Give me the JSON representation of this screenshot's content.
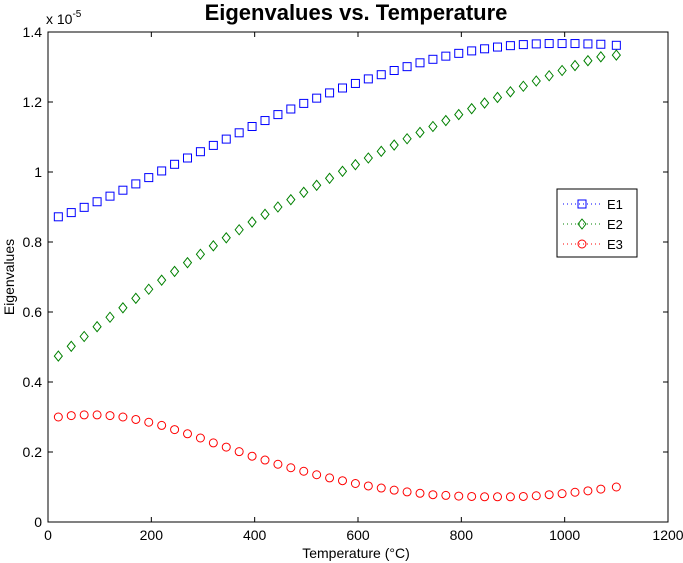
{
  "chart_data": {
    "type": "scatter",
    "title": "Eigenvalues vs. Temperature",
    "xlabel": "Temperature (°C)",
    "ylabel": "Eigenvalues",
    "exponent_label": "x 10",
    "exponent_power": "-5",
    "xlim": [
      0,
      1200
    ],
    "ylim": [
      0,
      1.4
    ],
    "xticks": [
      0,
      200,
      400,
      600,
      800,
      1000,
      1200
    ],
    "yticks": [
      0,
      0.2,
      0.4,
      0.6,
      0.8,
      1,
      1.2,
      1.4
    ],
    "xtick_labels": [
      "0",
      "200",
      "400",
      "600",
      "800",
      "1000",
      "1200"
    ],
    "ytick_labels": [
      "0",
      "0.2",
      "0.4",
      "0.6",
      "0.8",
      "1",
      "1.2",
      "1.4"
    ],
    "grid": false,
    "legend_position": "right",
    "x": [
      20,
      45,
      70,
      95,
      120,
      145,
      170,
      195,
      220,
      245,
      270,
      295,
      320,
      345,
      370,
      395,
      420,
      445,
      470,
      495,
      520,
      545,
      570,
      595,
      620,
      645,
      670,
      695,
      720,
      745,
      770,
      795,
      820,
      845,
      870,
      895,
      920,
      945,
      970,
      995,
      1020,
      1045,
      1070,
      1100
    ],
    "series": [
      {
        "name": "E1",
        "color": "#0000ff",
        "marker": "square",
        "values": [
          0.872,
          0.884,
          0.899,
          0.915,
          0.931,
          0.948,
          0.966,
          0.984,
          1.003,
          1.022,
          1.04,
          1.058,
          1.076,
          1.094,
          1.112,
          1.13,
          1.147,
          1.164,
          1.18,
          1.196,
          1.211,
          1.226,
          1.24,
          1.253,
          1.266,
          1.278,
          1.29,
          1.301,
          1.312,
          1.322,
          1.331,
          1.339,
          1.346,
          1.352,
          1.357,
          1.361,
          1.364,
          1.366,
          1.367,
          1.367,
          1.367,
          1.366,
          1.365,
          1.362
        ]
      },
      {
        "name": "E2",
        "color": "#008000",
        "marker": "diamond",
        "values": [
          0.474,
          0.502,
          0.53,
          0.558,
          0.585,
          0.612,
          0.639,
          0.665,
          0.691,
          0.716,
          0.741,
          0.765,
          0.789,
          0.812,
          0.835,
          0.857,
          0.879,
          0.9,
          0.921,
          0.942,
          0.962,
          0.982,
          1.002,
          1.021,
          1.04,
          1.059,
          1.077,
          1.095,
          1.113,
          1.13,
          1.147,
          1.164,
          1.181,
          1.197,
          1.213,
          1.229,
          1.245,
          1.26,
          1.275,
          1.29,
          1.304,
          1.318,
          1.329,
          1.334
        ]
      },
      {
        "name": "E3",
        "color": "#ff0000",
        "marker": "circle",
        "values": [
          0.3,
          0.304,
          0.306,
          0.306,
          0.304,
          0.3,
          0.293,
          0.285,
          0.276,
          0.264,
          0.252,
          0.24,
          0.226,
          0.214,
          0.201,
          0.188,
          0.177,
          0.165,
          0.155,
          0.145,
          0.135,
          0.126,
          0.118,
          0.11,
          0.103,
          0.097,
          0.091,
          0.086,
          0.082,
          0.078,
          0.076,
          0.074,
          0.073,
          0.072,
          0.072,
          0.072,
          0.073,
          0.075,
          0.078,
          0.081,
          0.085,
          0.089,
          0.094,
          0.1
        ]
      }
    ]
  }
}
